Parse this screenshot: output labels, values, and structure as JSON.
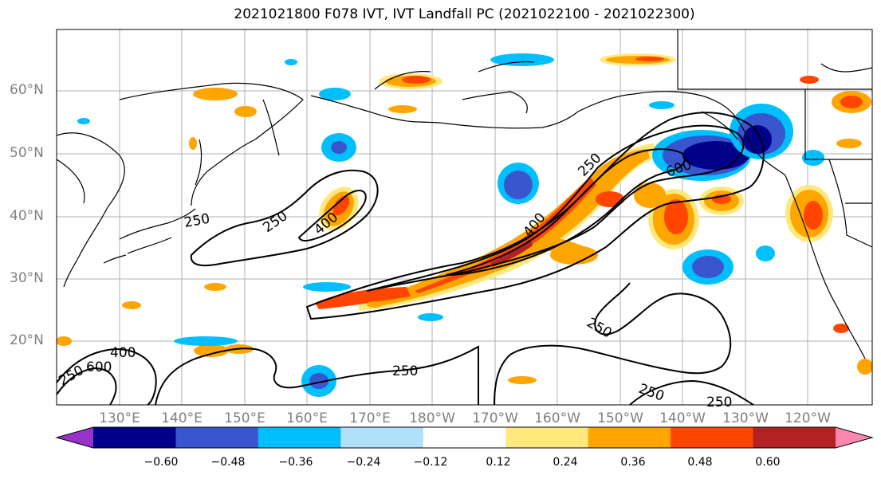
{
  "title": "2021021800 F078 IVT, IVT Landfall PC (2021022100 - 2021022300)",
  "lat_labels": [
    "60°N",
    "50°N",
    "40°N",
    "30°N",
    "20°N"
  ],
  "lon_labels": [
    "130°E",
    "140°E",
    "150°E",
    "160°E",
    "170°E",
    "180°W",
    "170°W",
    "160°W",
    "150°W",
    "140°W",
    "130°W",
    "120°W"
  ],
  "contour_labels": [
    "250",
    "250",
    "400",
    "250",
    "400",
    "600",
    "250",
    "400",
    "600",
    "250",
    "250",
    "250",
    "250"
  ],
  "colorbar": {
    "ticks": [
      "−0.60",
      "−0.48",
      "−0.36",
      "−0.24",
      "−0.12",
      "0.12",
      "0.24",
      "0.36",
      "0.48",
      "0.60"
    ],
    "colors": [
      "#9932cc",
      "#00008b",
      "#3a56cf",
      "#00bfff",
      "#b0e0fa",
      "#ffffff",
      "#ffe97f",
      "#ffa500",
      "#ff4500",
      "#b22222",
      "#ff86b0"
    ]
  },
  "fill_colors": {
    "light_blue": "#b0e0fa",
    "cyan": "#00bfff",
    "royal": "#3a56cf",
    "navy": "#00008b",
    "yellow": "#ffe97f",
    "orange": "#ffa500",
    "red_orange": "#ff4500",
    "dark_red": "#b22222"
  }
}
